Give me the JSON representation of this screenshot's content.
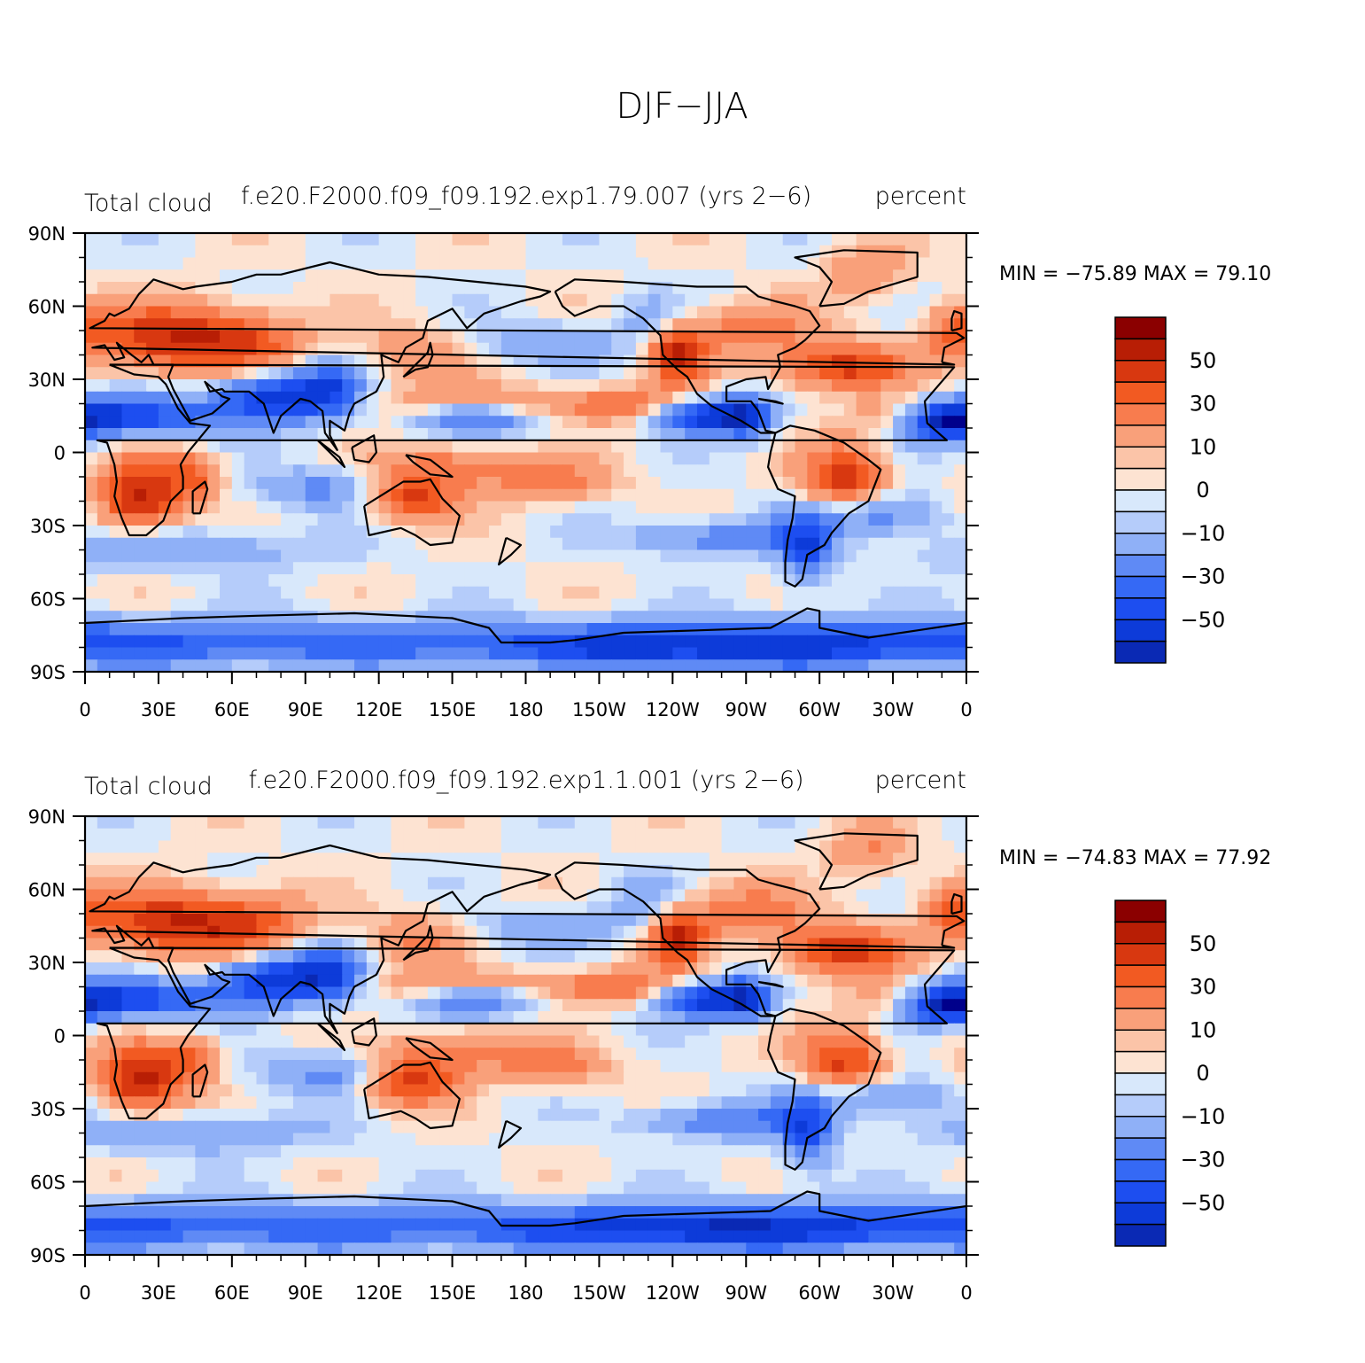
{
  "figure": {
    "title": "DJF−JJA"
  },
  "panels": [
    {
      "left_label": "Total cloud",
      "center_label": "f.e20.F2000.f09_f09.192.exp1.79.007 (yrs 2−6)",
      "right_label": "percent",
      "stats": "MIN = −75.89  MAX =   79.10",
      "min": -75.89,
      "max": 79.1
    },
    {
      "left_label": "Total cloud",
      "center_label": "f.e20.F2000.f09_f09.192.exp1.1.001 (yrs 2−6)",
      "right_label": "percent",
      "stats": "MIN = −74.83  MAX =   77.92",
      "min": -74.83,
      "max": 77.92
    }
  ],
  "axes": {
    "lat_labels": [
      "90N",
      "60N",
      "30N",
      "0",
      "30S",
      "60S",
      "90S"
    ],
    "lon_labels": [
      "0",
      "30E",
      "60E",
      "90E",
      "120E",
      "150E",
      "180",
      "150W",
      "120W",
      "90W",
      "60W",
      "30W",
      "0"
    ]
  },
  "colorbar": {
    "levels": [
      -70,
      -60,
      -50,
      -40,
      -30,
      -20,
      -10,
      -5,
      0,
      5,
      10,
      20,
      30,
      40,
      50,
      60,
      70
    ],
    "colors": [
      "#00008b",
      "#0a29b4",
      "#0d3bd9",
      "#1d4ef0",
      "#3569f5",
      "#5f8af5",
      "#8fb0f7",
      "#b5ccfa",
      "#d8e8fb",
      "#fde3d2",
      "#fbc4a8",
      "#f9a07a",
      "#f87c4e",
      "#f25a22",
      "#d83810",
      "#b81e05",
      "#8b0000"
    ],
    "labels": [
      "50",
      "30",
      "10",
      "0",
      "−10",
      "−30",
      "−50"
    ]
  }
}
